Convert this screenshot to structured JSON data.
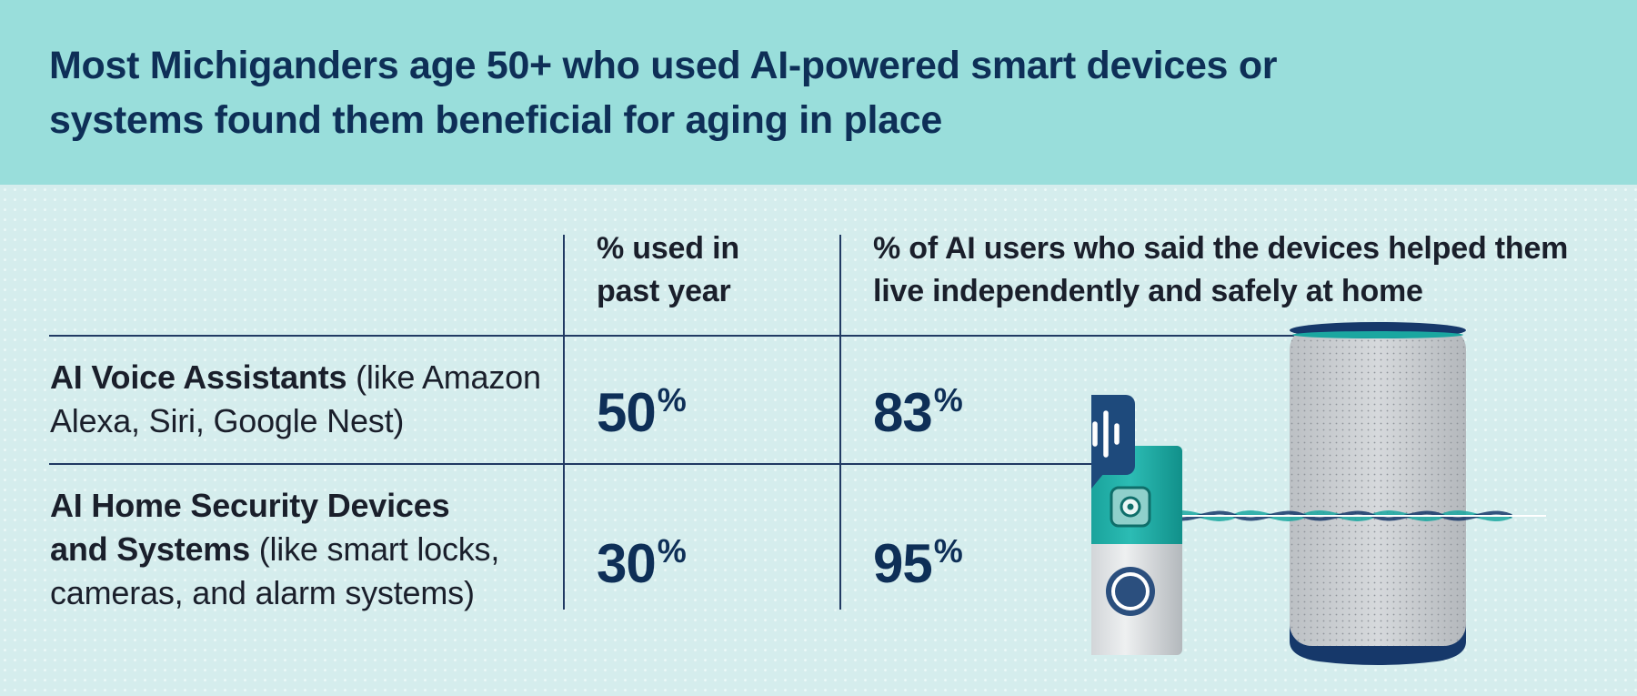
{
  "title": "Most Michiganders age 50+ who used AI-powered smart devices or systems found them beneficial for aging in place",
  "chart_data": {
    "type": "table",
    "title": "Most Michiganders age 50+ who used AI-powered smart devices or systems found them beneficial for aging in place",
    "columns": [
      "% used in past year",
      "% of AI users who said the devices helped them live independently and safely at home"
    ],
    "rows": [
      {
        "label_bold": "AI Voice Assistants",
        "label_rest": " (like Amazon Alexa, Siri, Google Nest)",
        "used_past_year": 50,
        "helped_independent": 83
      },
      {
        "label_bold": "AI Home Security Devices and Systems",
        "label_rest": " (like smart locks, cameras, and alarm systems)",
        "used_past_year": 30,
        "helped_independent": 95
      }
    ],
    "unit": "%"
  },
  "colors": {
    "header_bg": "#99dedb",
    "body_bg": "#d6eeee",
    "title_text": "#0e2f57",
    "value_text": "#0e2f57",
    "rule": "#213a63",
    "teal": "#1aa7a0"
  },
  "icons": [
    "smart-speaker-icon",
    "video-doorbell-icon",
    "voice-bubble-icon",
    "sparkle-icon",
    "sound-wave-icon"
  ]
}
